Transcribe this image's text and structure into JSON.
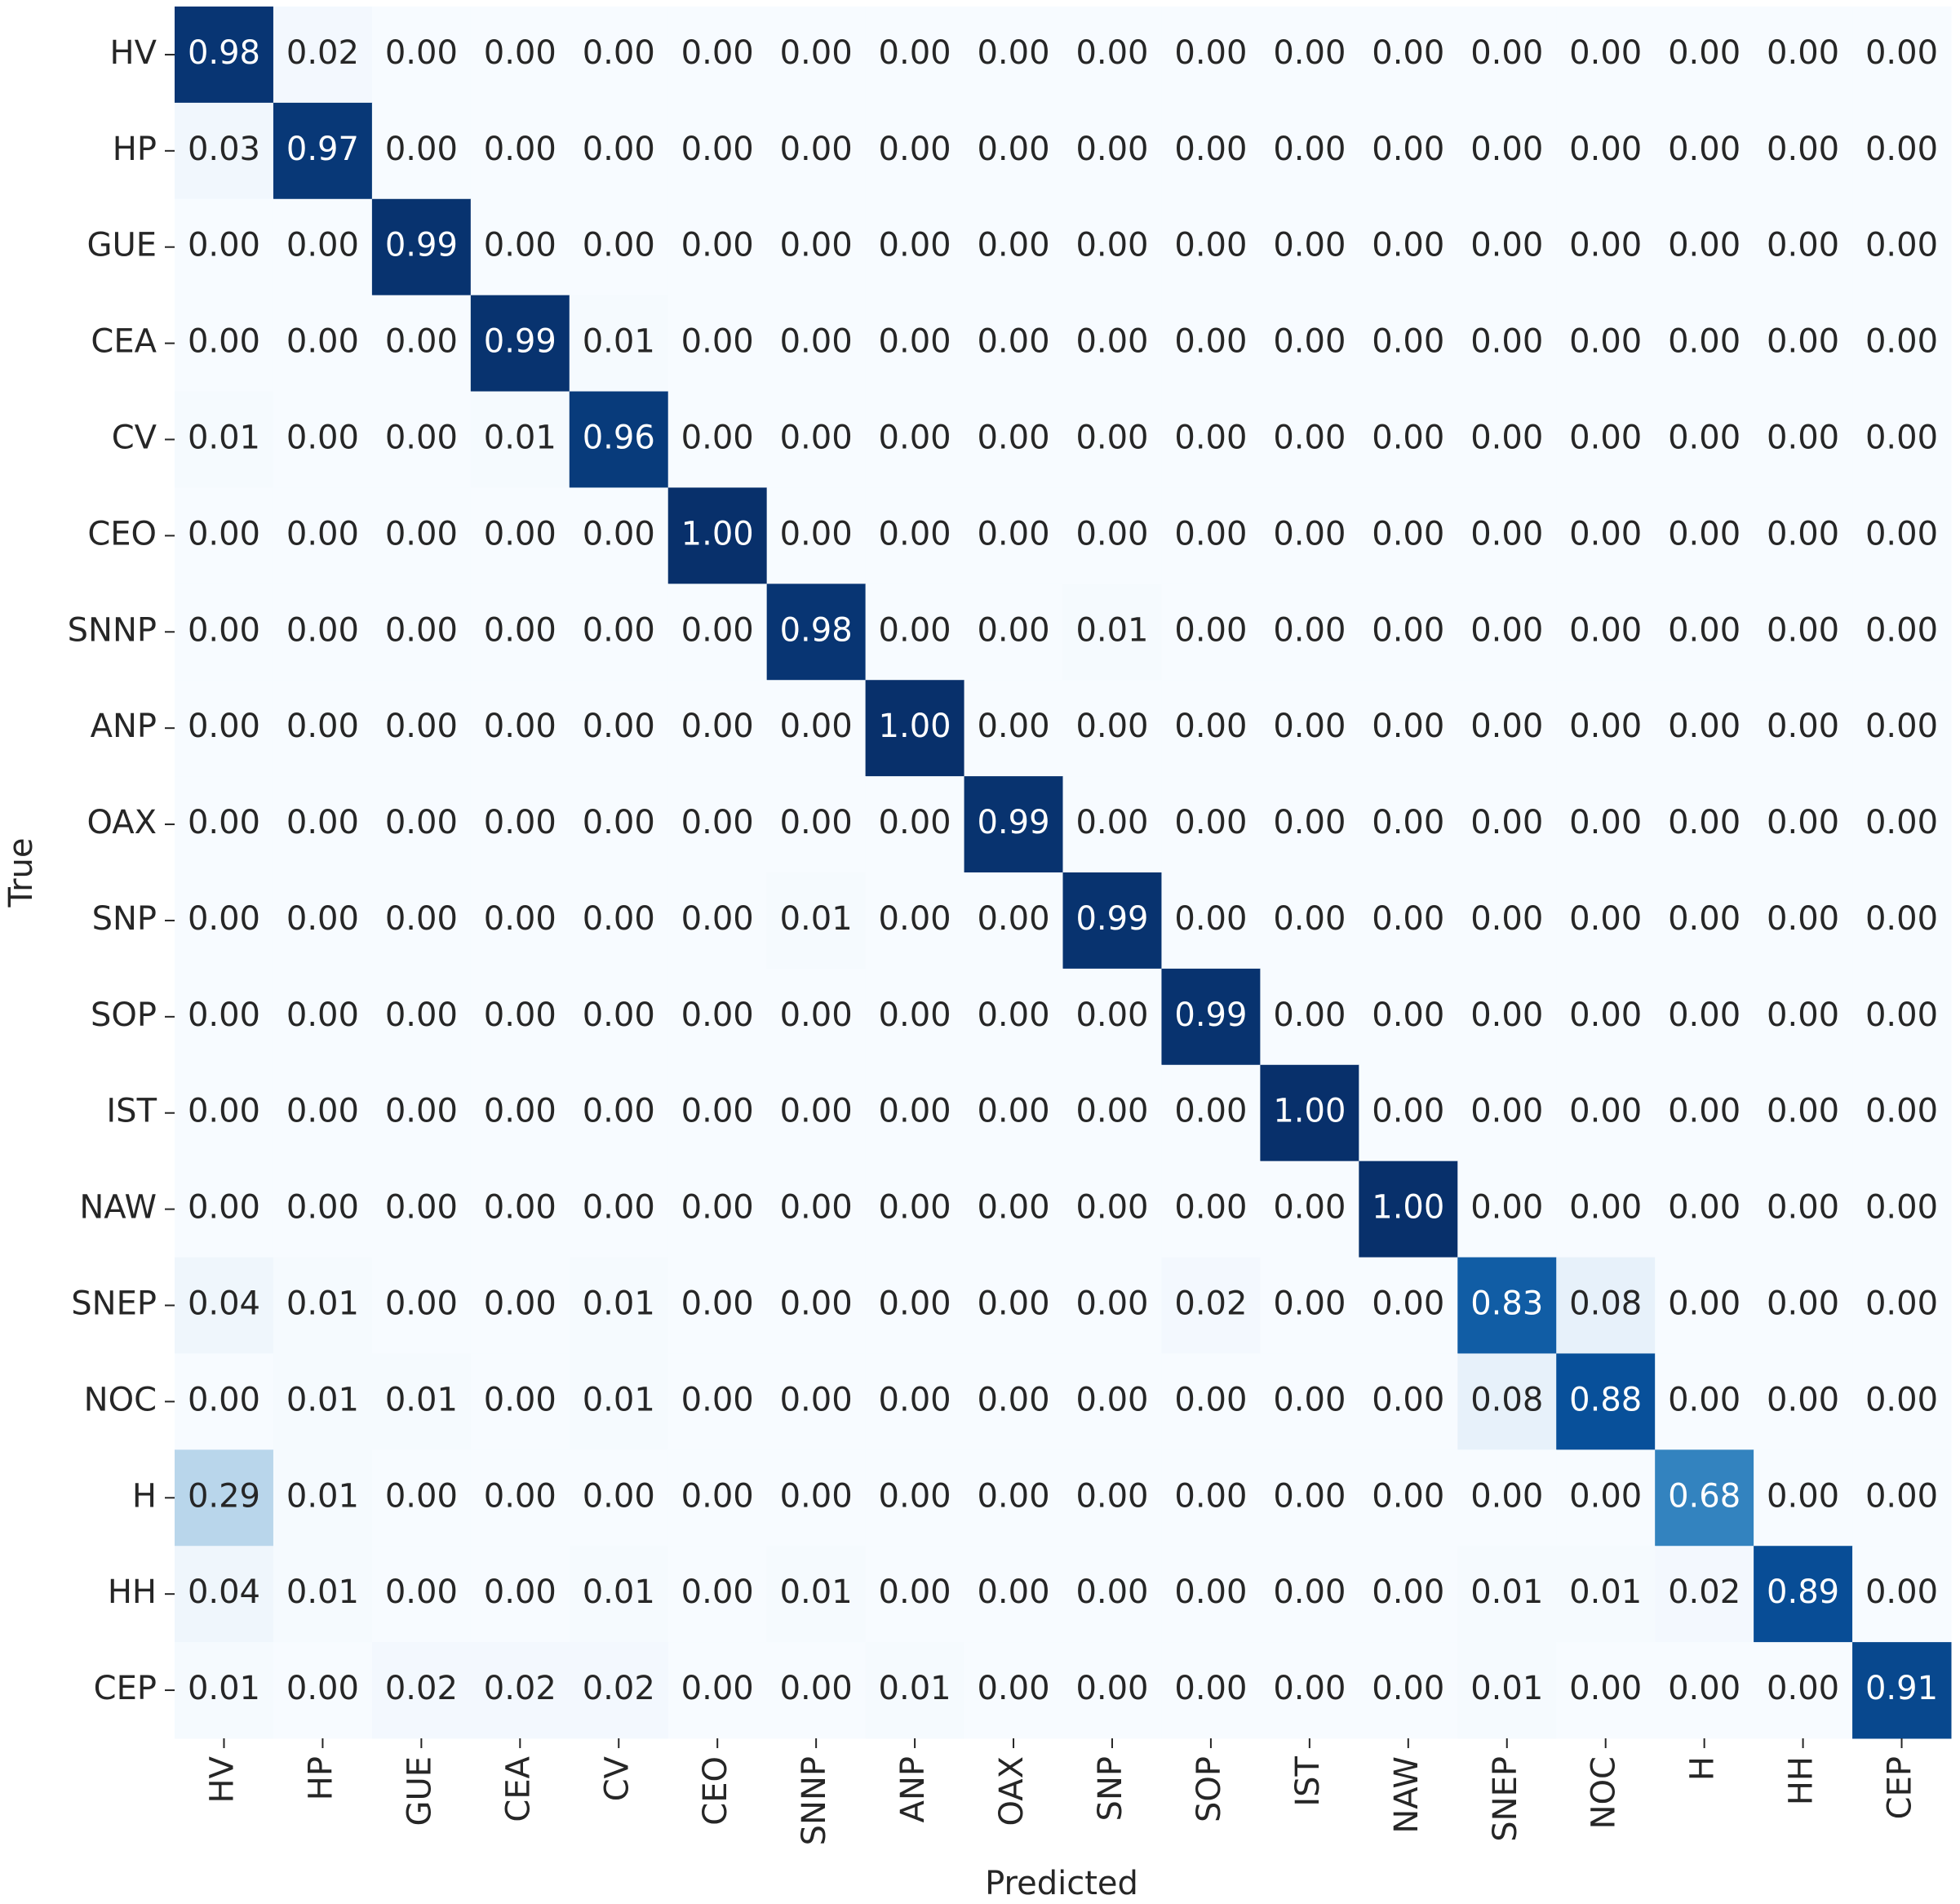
{
  "chart_data": {
    "type": "heatmap",
    "x_label": "Predicted",
    "y_label": "True",
    "x_categories": [
      "HV",
      "HP",
      "GUE",
      "CEA",
      "CV",
      "CEO",
      "SNNP",
      "ANP",
      "OAX",
      "SNP",
      "SOP",
      "IST",
      "NAW",
      "SNEP",
      "NOC",
      "H",
      "HH",
      "CEP"
    ],
    "y_categories": [
      "HV",
      "HP",
      "GUE",
      "CEA",
      "CV",
      "CEO",
      "SNNP",
      "ANP",
      "OAX",
      "SNP",
      "SOP",
      "IST",
      "NAW",
      "SNEP",
      "NOC",
      "H",
      "HH",
      "CEP"
    ],
    "vlim": [
      0,
      1
    ],
    "colormap": [
      "#f7fbff",
      "#deebf7",
      "#c6dbef",
      "#9ecae1",
      "#6baed6",
      "#4292c6",
      "#2171b5",
      "#08519c",
      "#08306b"
    ],
    "values": [
      [
        0.98,
        0.02,
        0,
        0,
        0,
        0,
        0,
        0,
        0,
        0,
        0,
        0,
        0,
        0,
        0,
        0,
        0,
        0
      ],
      [
        0.03,
        0.97,
        0,
        0,
        0,
        0,
        0,
        0,
        0,
        0,
        0,
        0,
        0,
        0,
        0,
        0,
        0,
        0
      ],
      [
        0,
        0,
        0.99,
        0,
        0,
        0,
        0,
        0,
        0,
        0,
        0,
        0,
        0,
        0,
        0,
        0,
        0,
        0
      ],
      [
        0,
        0,
        0,
        0.99,
        0.01,
        0,
        0,
        0,
        0,
        0,
        0,
        0,
        0,
        0,
        0,
        0,
        0,
        0
      ],
      [
        0.01,
        0,
        0,
        0.01,
        0.96,
        0,
        0,
        0,
        0,
        0,
        0,
        0,
        0,
        0,
        0,
        0,
        0,
        0
      ],
      [
        0,
        0,
        0,
        0,
        0,
        1,
        0,
        0,
        0,
        0,
        0,
        0,
        0,
        0,
        0,
        0,
        0,
        0
      ],
      [
        0,
        0,
        0,
        0,
        0,
        0,
        0.98,
        0,
        0,
        0.01,
        0,
        0,
        0,
        0,
        0,
        0,
        0,
        0
      ],
      [
        0,
        0,
        0,
        0,
        0,
        0,
        0,
        1,
        0,
        0,
        0,
        0,
        0,
        0,
        0,
        0,
        0,
        0
      ],
      [
        0,
        0,
        0,
        0,
        0,
        0,
        0,
        0,
        0.99,
        0,
        0,
        0,
        0,
        0,
        0,
        0,
        0,
        0
      ],
      [
        0,
        0,
        0,
        0,
        0,
        0,
        0.01,
        0,
        0,
        0.99,
        0,
        0,
        0,
        0,
        0,
        0,
        0,
        0
      ],
      [
        0,
        0,
        0,
        0,
        0,
        0,
        0,
        0,
        0,
        0,
        0.99,
        0,
        0,
        0,
        0,
        0,
        0,
        0
      ],
      [
        0,
        0,
        0,
        0,
        0,
        0,
        0,
        0,
        0,
        0,
        0,
        1,
        0,
        0,
        0,
        0,
        0,
        0
      ],
      [
        0,
        0,
        0,
        0,
        0,
        0,
        0,
        0,
        0,
        0,
        0,
        0,
        1,
        0,
        0,
        0,
        0,
        0
      ],
      [
        0.04,
        0.01,
        0,
        0,
        0.01,
        0,
        0,
        0,
        0,
        0,
        0.02,
        0,
        0,
        0.83,
        0.08,
        0,
        0,
        0
      ],
      [
        0,
        0.01,
        0.01,
        0,
        0.01,
        0,
        0,
        0,
        0,
        0,
        0,
        0,
        0,
        0.08,
        0.88,
        0,
        0,
        0
      ],
      [
        0.29,
        0.01,
        0,
        0,
        0,
        0,
        0,
        0,
        0,
        0,
        0,
        0,
        0,
        0,
        0,
        0.68,
        0,
        0
      ],
      [
        0.04,
        0.01,
        0,
        0,
        0.01,
        0,
        0.01,
        0,
        0,
        0,
        0,
        0,
        0,
        0.01,
        0.01,
        0.02,
        0.89,
        0
      ],
      [
        0.01,
        0,
        0.02,
        0.02,
        0.02,
        0,
        0,
        0.01,
        0,
        0,
        0,
        0,
        0,
        0.01,
        0,
        0,
        0,
        0.91
      ]
    ],
    "value_labels": [
      [
        "0.98",
        "0.02",
        "0.00",
        "0.00",
        "0.00",
        "0.00",
        "0.00",
        "0.00",
        "0.00",
        "0.00",
        "0.00",
        "0.00",
        "0.00",
        "0.00",
        "0.00",
        "0.00",
        "0.00",
        "0.00"
      ],
      [
        "0.03",
        "0.97",
        "0.00",
        "0.00",
        "0.00",
        "0.00",
        "0.00",
        "0.00",
        "0.00",
        "0.00",
        "0.00",
        "0.00",
        "0.00",
        "0.00",
        "0.00",
        "0.00",
        "0.00",
        "0.00"
      ],
      [
        "0.00",
        "0.00",
        "0.99",
        "0.00",
        "0.00",
        "0.00",
        "0.00",
        "0.00",
        "0.00",
        "0.00",
        "0.00",
        "0.00",
        "0.00",
        "0.00",
        "0.00",
        "0.00",
        "0.00",
        "0.00"
      ],
      [
        "0.00",
        "0.00",
        "0.00",
        "0.99",
        "0.01",
        "0.00",
        "0.00",
        "0.00",
        "0.00",
        "0.00",
        "0.00",
        "0.00",
        "0.00",
        "0.00",
        "0.00",
        "0.00",
        "0.00",
        "0.00"
      ],
      [
        "0.01",
        "0.00",
        "0.00",
        "0.01",
        "0.96",
        "0.00",
        "0.00",
        "0.00",
        "0.00",
        "0.00",
        "0.00",
        "0.00",
        "0.00",
        "0.00",
        "0.00",
        "0.00",
        "0.00",
        "0.00"
      ],
      [
        "0.00",
        "0.00",
        "0.00",
        "0.00",
        "0.00",
        "1.00",
        "0.00",
        "0.00",
        "0.00",
        "0.00",
        "0.00",
        "0.00",
        "0.00",
        "0.00",
        "0.00",
        "0.00",
        "0.00",
        "0.00"
      ],
      [
        "0.00",
        "0.00",
        "0.00",
        "0.00",
        "0.00",
        "0.00",
        "0.98",
        "0.00",
        "0.00",
        "0.01",
        "0.00",
        "0.00",
        "0.00",
        "0.00",
        "0.00",
        "0.00",
        "0.00",
        "0.00"
      ],
      [
        "0.00",
        "0.00",
        "0.00",
        "0.00",
        "0.00",
        "0.00",
        "0.00",
        "1.00",
        "0.00",
        "0.00",
        "0.00",
        "0.00",
        "0.00",
        "0.00",
        "0.00",
        "0.00",
        "0.00",
        "0.00"
      ],
      [
        "0.00",
        "0.00",
        "0.00",
        "0.00",
        "0.00",
        "0.00",
        "0.00",
        "0.00",
        "0.99",
        "0.00",
        "0.00",
        "0.00",
        "0.00",
        "0.00",
        "0.00",
        "0.00",
        "0.00",
        "0.00"
      ],
      [
        "0.00",
        "0.00",
        "0.00",
        "0.00",
        "0.00",
        "0.00",
        "0.01",
        "0.00",
        "0.00",
        "0.99",
        "0.00",
        "0.00",
        "0.00",
        "0.00",
        "0.00",
        "0.00",
        "0.00",
        "0.00"
      ],
      [
        "0.00",
        "0.00",
        "0.00",
        "0.00",
        "0.00",
        "0.00",
        "0.00",
        "0.00",
        "0.00",
        "0.00",
        "0.99",
        "0.00",
        "0.00",
        "0.00",
        "0.00",
        "0.00",
        "0.00",
        "0.00"
      ],
      [
        "0.00",
        "0.00",
        "0.00",
        "0.00",
        "0.00",
        "0.00",
        "0.00",
        "0.00",
        "0.00",
        "0.00",
        "0.00",
        "1.00",
        "0.00",
        "0.00",
        "0.00",
        "0.00",
        "0.00",
        "0.00"
      ],
      [
        "0.00",
        "0.00",
        "0.00",
        "0.00",
        "0.00",
        "0.00",
        "0.00",
        "0.00",
        "0.00",
        "0.00",
        "0.00",
        "0.00",
        "1.00",
        "0.00",
        "0.00",
        "0.00",
        "0.00",
        "0.00"
      ],
      [
        "0.04",
        "0.01",
        "0.00",
        "0.00",
        "0.01",
        "0.00",
        "0.00",
        "0.00",
        "0.00",
        "0.00",
        "0.02",
        "0.00",
        "0.00",
        "0.83",
        "0.08",
        "0.00",
        "0.00",
        "0.00"
      ],
      [
        "0.00",
        "0.01",
        "0.01",
        "0.00",
        "0.01",
        "0.00",
        "0.00",
        "0.00",
        "0.00",
        "0.00",
        "0.00",
        "0.00",
        "0.00",
        "0.08",
        "0.88",
        "0.00",
        "0.00",
        "0.00"
      ],
      [
        "0.29",
        "0.01",
        "0.00",
        "0.00",
        "0.00",
        "0.00",
        "0.00",
        "0.00",
        "0.00",
        "0.00",
        "0.00",
        "0.00",
        "0.00",
        "0.00",
        "0.00",
        "0.68",
        "0.00",
        "0.00"
      ],
      [
        "0.04",
        "0.01",
        "0.00",
        "0.00",
        "0.01",
        "0.00",
        "0.01",
        "0.00",
        "0.00",
        "0.00",
        "0.00",
        "0.00",
        "0.00",
        "0.01",
        "0.01",
        "0.02",
        "0.89",
        "0.00"
      ],
      [
        "0.01",
        "0.00",
        "0.02",
        "0.02",
        "0.02",
        "0.00",
        "0.00",
        "0.01",
        "0.00",
        "0.00",
        "0.00",
        "0.00",
        "0.00",
        "0.01",
        "0.00",
        "0.00",
        "0.00",
        "0.91"
      ]
    ]
  }
}
